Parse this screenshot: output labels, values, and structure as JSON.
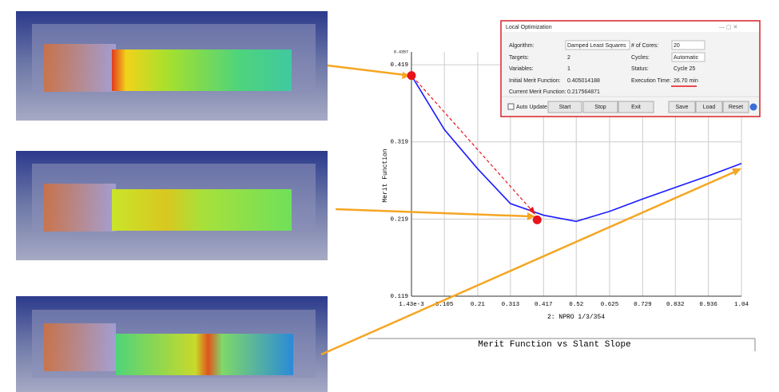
{
  "chart_data": {
    "type": "line",
    "title": "Merit Function vs Slant Slope",
    "xlabel": "2: NPRO 1/3/354",
    "ylabel": "Merit Function",
    "x": [
      0.00143,
      0.105,
      0.21,
      0.313,
      0.417,
      0.52,
      0.625,
      0.729,
      0.832,
      0.936,
      1.04
    ],
    "series": [
      {
        "color": "#1a1aff",
        "values": [
          0.405,
          0.335,
          0.284,
          0.239,
          0.224,
          0.216,
          0.229,
          0.245,
          0.26,
          0.275,
          0.291
        ]
      }
    ],
    "highlights": {
      "color": "#e8141b",
      "x": [
        0.00143,
        0.397
      ],
      "values": [
        0.405,
        0.218
      ]
    },
    "xlim": [
      0.00143,
      1.04
    ],
    "ylim": [
      0.119,
      0.4357
    ],
    "xticks": [
      {
        "value": 0.00143,
        "label": "1.43e-3"
      },
      0.105,
      0.21,
      0.313,
      0.417,
      0.52,
      0.625,
      0.729,
      0.832,
      0.936,
      1.04
    ],
    "yticks": [
      0.119,
      0.219,
      0.319,
      0.419,
      0.4357
    ],
    "grid": true
  },
  "dialog": {
    "title": "Local Optimization",
    "left": [
      [
        "Algorithm:",
        "Damped Least Squares"
      ],
      [
        "Targets:",
        "2"
      ],
      [
        "Variables:",
        "1"
      ],
      [
        "Initial Merit Function:",
        "0.405014188"
      ],
      [
        "Current Merit Function:",
        "0.217564871"
      ]
    ],
    "right": [
      [
        "# of Cores:",
        "20"
      ],
      [
        "Cycles:",
        "Automatic"
      ],
      [
        "Status:",
        "Cycle 25"
      ],
      [
        "Execution Time:",
        "26.70 min"
      ]
    ],
    "checkbox": "Auto Update",
    "buttons": [
      "Start",
      "Stop",
      "Exit",
      "Save",
      "Load",
      "Reset"
    ]
  }
}
